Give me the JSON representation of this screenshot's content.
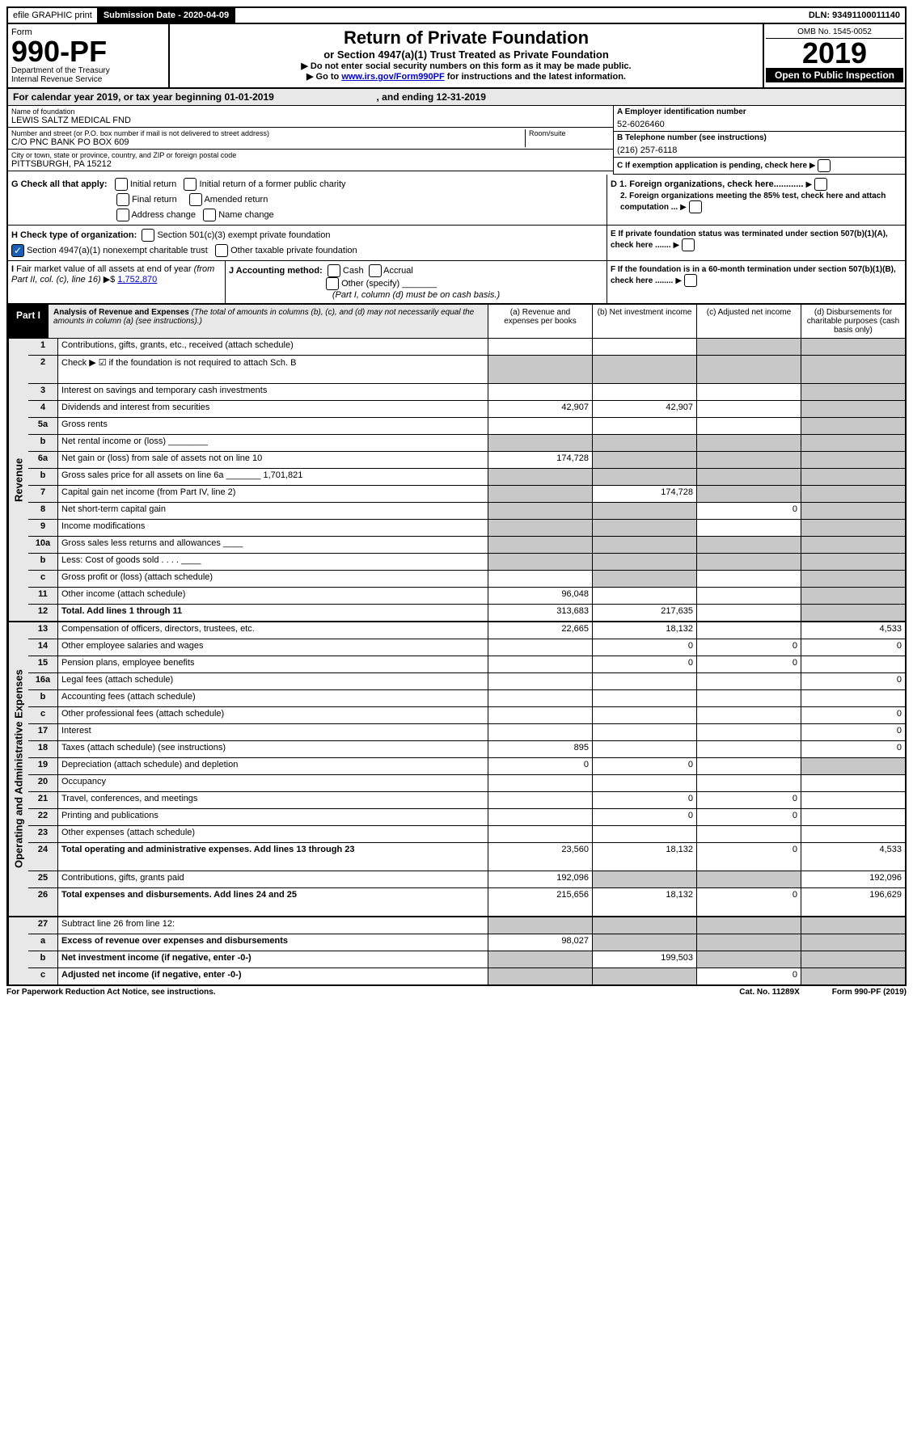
{
  "top": {
    "efile": "efile GRAPHIC print",
    "sub_lbl": "Submission Date - 2020-04-09",
    "dln": "DLN: 93491100011140"
  },
  "header": {
    "form_word": "Form",
    "form_num": "990-PF",
    "dept1": "Department of the Treasury",
    "dept2": "Internal Revenue Service",
    "title": "Return of Private Foundation",
    "sub": "or Section 4947(a)(1) Trust Treated as Private Foundation",
    "note1": "▶ Do not enter social security numbers on this form as it may be made public.",
    "note2_pre": "▶ Go to ",
    "note2_link": "www.irs.gov/Form990PF",
    "note2_post": " for instructions and the latest information.",
    "omb": "OMB No. 1545-0052",
    "year": "2019",
    "open": "Open to Public Inspection"
  },
  "cal": {
    "text_a": "For calendar year 2019, or tax year beginning 01-01-2019",
    "text_b": ", and ending 12-31-2019"
  },
  "name": {
    "lbl": "Name of foundation",
    "val": "LEWIS SALTZ MEDICAL FND"
  },
  "ein": {
    "lbl": "A Employer identification number",
    "val": "52-6026460"
  },
  "addr": {
    "lbl": "Number and street (or P.O. box number if mail is not delivered to street address)",
    "val": "C/O PNC BANK PO BOX 609",
    "room_lbl": "Room/suite"
  },
  "phone": {
    "lbl": "B Telephone number (see instructions)",
    "val": "(216) 257-6118"
  },
  "city": {
    "lbl": "City or town, state or province, country, and ZIP or foreign postal code",
    "val": "PITTSBURGH, PA  15212"
  },
  "c_lbl": "C If exemption application is pending, check here",
  "g": {
    "lbl": "G Check all that apply:",
    "o1": "Initial return",
    "o2": "Initial return of a former public charity",
    "o3": "Final return",
    "o4": "Amended return",
    "o5": "Address change",
    "o6": "Name change"
  },
  "d": {
    "d1": "D 1. Foreign organizations, check here............",
    "d2": "2. Foreign organizations meeting the 85% test, check here and attach computation ..."
  },
  "h": {
    "lbl": "H Check type of organization:",
    "o1": "Section 501(c)(3) exempt private foundation",
    "o2": "Section 4947(a)(1) nonexempt charitable trust",
    "o3": "Other taxable private foundation"
  },
  "e_lbl": "E If private foundation status was terminated under section 507(b)(1)(A), check here .......",
  "i": {
    "lbl": "I Fair market value of all assets at end of year (from Part II, col. (c), line 16) ▶$",
    "val": "1,752,870"
  },
  "j": {
    "lbl": "J Accounting method:",
    "cash": "Cash",
    "accrual": "Accrual",
    "other": "Other (specify)",
    "note": "(Part I, column (d) must be on cash basis.)"
  },
  "f_lbl": "F If the foundation is in a 60-month termination under section 507(b)(1)(B), check here ........",
  "part1": {
    "label": "Part I",
    "title": "Analysis of Revenue and Expenses",
    "desc": "(The total of amounts in columns (b), (c), and (d) may not necessarily equal the amounts in column (a) (see instructions).)",
    "ca": "(a) Revenue and expenses per books",
    "cb": "(b) Net investment income",
    "cc": "(c) Adjusted net income",
    "cd": "(d) Disbursements for charitable purposes (cash basis only)"
  },
  "grp": {
    "rev": "Revenue",
    "exp": "Operating and Administrative Expenses"
  },
  "rows_rev": [
    {
      "n": "1",
      "d": "Contributions, gifts, grants, etc., received (attach schedule)",
      "a": "",
      "b": "",
      "c": "S",
      "dd": "S"
    },
    {
      "n": "2",
      "d": "Check ▶ ☑ if the foundation is not required to attach Sch. B",
      "a": "S",
      "b": "S",
      "c": "S",
      "dd": "S",
      "tall": true
    },
    {
      "n": "3",
      "d": "Interest on savings and temporary cash investments",
      "a": "",
      "b": "",
      "c": "",
      "dd": "S"
    },
    {
      "n": "4",
      "d": "Dividends and interest from securities",
      "a": "42,907",
      "b": "42,907",
      "c": "",
      "dd": "S"
    },
    {
      "n": "5a",
      "d": "Gross rents",
      "a": "",
      "b": "",
      "c": "",
      "dd": "S"
    },
    {
      "n": "b",
      "d": "Net rental income or (loss) ________",
      "a": "S",
      "b": "S",
      "c": "S",
      "dd": "S"
    },
    {
      "n": "6a",
      "d": "Net gain or (loss) from sale of assets not on line 10",
      "a": "174,728",
      "b": "S",
      "c": "S",
      "dd": "S"
    },
    {
      "n": "b",
      "d": "Gross sales price for all assets on line 6a _______ 1,701,821",
      "a": "S",
      "b": "S",
      "c": "S",
      "dd": "S"
    },
    {
      "n": "7",
      "d": "Capital gain net income (from Part IV, line 2)",
      "a": "S",
      "b": "174,728",
      "c": "S",
      "dd": "S"
    },
    {
      "n": "8",
      "d": "Net short-term capital gain",
      "a": "S",
      "b": "S",
      "c": "0",
      "dd": "S"
    },
    {
      "n": "9",
      "d": "Income modifications",
      "a": "S",
      "b": "S",
      "c": "",
      "dd": "S"
    },
    {
      "n": "10a",
      "d": "Gross sales less returns and allowances ____",
      "a": "S",
      "b": "S",
      "c": "S",
      "dd": "S"
    },
    {
      "n": "b",
      "d": "Less: Cost of goods sold    .  .  .  . ____",
      "a": "S",
      "b": "S",
      "c": "S",
      "dd": "S"
    },
    {
      "n": "c",
      "d": "Gross profit or (loss) (attach schedule)",
      "a": "",
      "b": "S",
      "c": "",
      "dd": "S"
    },
    {
      "n": "11",
      "d": "Other income (attach schedule)",
      "a": "96,048",
      "b": "",
      "c": "",
      "dd": "S"
    },
    {
      "n": "12",
      "d": "Total. Add lines 1 through 11",
      "a": "313,683",
      "b": "217,635",
      "c": "",
      "dd": "S",
      "bold": true
    }
  ],
  "rows_exp": [
    {
      "n": "13",
      "d": "Compensation of officers, directors, trustees, etc.",
      "a": "22,665",
      "b": "18,132",
      "c": "",
      "dd": "4,533"
    },
    {
      "n": "14",
      "d": "Other employee salaries and wages",
      "a": "",
      "b": "0",
      "c": "0",
      "dd": "0"
    },
    {
      "n": "15",
      "d": "Pension plans, employee benefits",
      "a": "",
      "b": "0",
      "c": "0",
      "dd": ""
    },
    {
      "n": "16a",
      "d": "Legal fees (attach schedule)",
      "a": "",
      "b": "",
      "c": "",
      "dd": "0"
    },
    {
      "n": "b",
      "d": "Accounting fees (attach schedule)",
      "a": "",
      "b": "",
      "c": "",
      "dd": ""
    },
    {
      "n": "c",
      "d": "Other professional fees (attach schedule)",
      "a": "",
      "b": "",
      "c": "",
      "dd": "0"
    },
    {
      "n": "17",
      "d": "Interest",
      "a": "",
      "b": "",
      "c": "",
      "dd": "0"
    },
    {
      "n": "18",
      "d": "Taxes (attach schedule) (see instructions)",
      "a": "895",
      "b": "",
      "c": "",
      "dd": "0"
    },
    {
      "n": "19",
      "d": "Depreciation (attach schedule) and depletion",
      "a": "0",
      "b": "0",
      "c": "",
      "dd": "S"
    },
    {
      "n": "20",
      "d": "Occupancy",
      "a": "",
      "b": "",
      "c": "",
      "dd": ""
    },
    {
      "n": "21",
      "d": "Travel, conferences, and meetings",
      "a": "",
      "b": "0",
      "c": "0",
      "dd": ""
    },
    {
      "n": "22",
      "d": "Printing and publications",
      "a": "",
      "b": "0",
      "c": "0",
      "dd": ""
    },
    {
      "n": "23",
      "d": "Other expenses (attach schedule)",
      "a": "",
      "b": "",
      "c": "",
      "dd": ""
    },
    {
      "n": "24",
      "d": "Total operating and administrative expenses. Add lines 13 through 23",
      "a": "23,560",
      "b": "18,132",
      "c": "0",
      "dd": "4,533",
      "bold": true,
      "tall": true
    },
    {
      "n": "25",
      "d": "Contributions, gifts, grants paid",
      "a": "192,096",
      "b": "S",
      "c": "S",
      "dd": "192,096"
    },
    {
      "n": "26",
      "d": "Total expenses and disbursements. Add lines 24 and 25",
      "a": "215,656",
      "b": "18,132",
      "c": "0",
      "dd": "196,629",
      "bold": true,
      "tall": true
    }
  ],
  "rows_sub": [
    {
      "n": "27",
      "d": "Subtract line 26 from line 12:",
      "a": "S",
      "b": "S",
      "c": "S",
      "dd": "S"
    },
    {
      "n": "a",
      "d": "Excess of revenue over expenses and disbursements",
      "a": "98,027",
      "b": "S",
      "c": "S",
      "dd": "S",
      "bold": true
    },
    {
      "n": "b",
      "d": "Net investment income (if negative, enter -0-)",
      "a": "S",
      "b": "199,503",
      "c": "S",
      "dd": "S",
      "bold": true
    },
    {
      "n": "c",
      "d": "Adjusted net income (if negative, enter -0-)",
      "a": "S",
      "b": "S",
      "c": "0",
      "dd": "S",
      "bold": true
    }
  ],
  "footer": {
    "pra": "For Paperwork Reduction Act Notice, see instructions.",
    "cat": "Cat. No. 11289X",
    "form": "Form 990-PF (2019)"
  }
}
